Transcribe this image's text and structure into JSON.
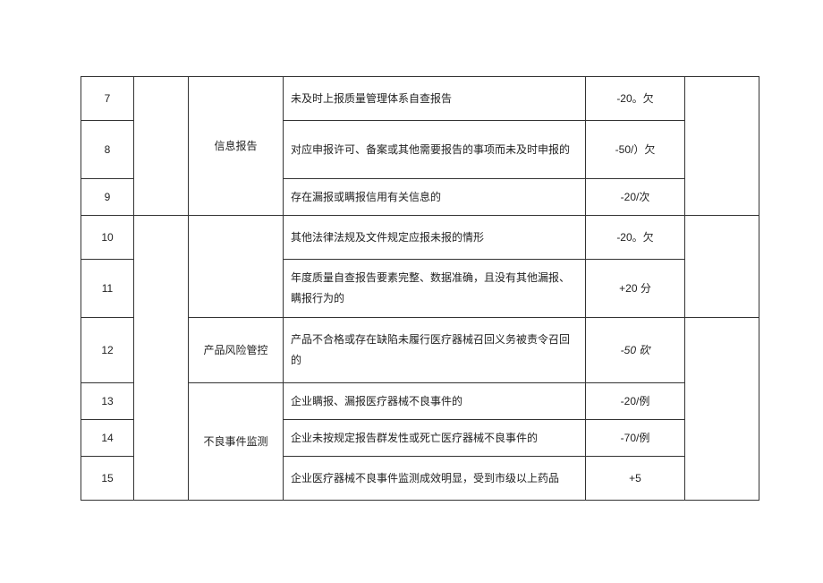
{
  "rows": [
    {
      "idx": "7",
      "category": "",
      "desc": "未及时上报质量管理体系自查报告",
      "score": "-20。欠"
    },
    {
      "idx": "8",
      "category": "信息报告",
      "desc": "对应申报许可、备案或其他需要报告的事项而未及时申报的",
      "score": "-50/）欠"
    },
    {
      "idx": "9",
      "category": "",
      "desc": "存在漏报或瞒报信用有关信息的",
      "score": "-20/次"
    },
    {
      "idx": "10",
      "category": "",
      "desc": "其他法律法规及文件规定应报未报的情形",
      "score": "-20。欠"
    },
    {
      "idx": "11",
      "category": "",
      "desc": "年度质量自查报告要素完整、数据准确，且没有其他漏报、瞒报行为的",
      "score": "+20 分"
    },
    {
      "idx": "12",
      "category": "产品风险管控",
      "desc": "产品不合格或存在缺陷未履行医疗器械召回义务被责令召回的",
      "score": "-50 砍"
    },
    {
      "idx": "13",
      "category": "",
      "desc": "企业瞒报、漏报医疗器械不良事件的",
      "score": "-20/例"
    },
    {
      "idx": "14",
      "category": "不良事件监测",
      "desc": "企业未按规定报告群发性或死亡医疗器械不良事件的",
      "score": "-70/例"
    },
    {
      "idx": "15",
      "category": "",
      "desc": "企业医疗器械不良事件监测成效明显，受到市级以上药品",
      "score": "+5"
    }
  ]
}
